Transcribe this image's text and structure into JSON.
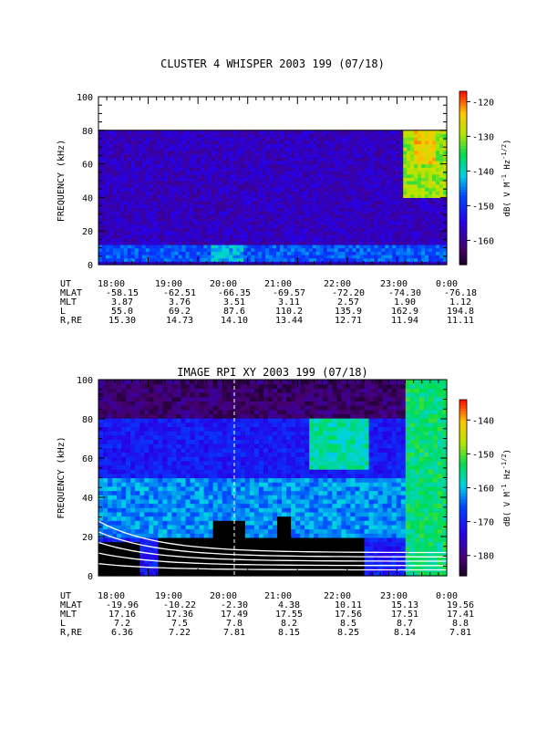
{
  "chart_data": [
    {
      "type": "heatmap",
      "title": "CLUSTER 4 WHISPER 2003 199 (07/18)",
      "ylabel": "FREQUENCY (kHz)",
      "ylim": [
        0,
        100
      ],
      "yticks": [
        "0",
        "20",
        "40",
        "60",
        "80",
        "100"
      ],
      "data_top_khz": 80,
      "colorbar": {
        "label": "dB( V M⁻¹ Hz⁻¹ᐟ²)",
        "label_parts": [
          "dB( V M",
          "-1",
          " Hz",
          "-1/2",
          ")"
        ],
        "ticks": [
          "-120",
          "-130",
          "-140",
          "-150",
          "-160"
        ],
        "range": [
          -167,
          -117
        ]
      },
      "ephemeris": {
        "rows": [
          {
            "label": "UT",
            "values": [
              "18:00",
              "19:00",
              "20:00",
              "21:00",
              "22:00",
              "23:00",
              "0:00"
            ]
          },
          {
            "label": "MLAT",
            "values": [
              "-58.15",
              "-62.51",
              "-66.35",
              "-69.57",
              "-72.20",
              "-74.30",
              "-76.18"
            ]
          },
          {
            "label": "MLT",
            "values": [
              "3.87",
              "3.76",
              "3.51",
              "3.11",
              "2.57",
              "1.90",
              "1.12"
            ]
          },
          {
            "label": "L",
            "values": [
              "55.0",
              "69.2",
              "87.6",
              "110.2",
              "135.9",
              "162.9",
              "194.8"
            ]
          },
          {
            "label": "R,RE",
            "values": [
              "15.30",
              "14.73",
              "14.10",
              "13.44",
              "12.71",
              "11.94",
              "11.11"
            ]
          }
        ]
      },
      "background_db": -157,
      "features": [
        {
          "kind": "band",
          "t0": 0.0,
          "t1": 1.0,
          "f0": 2,
          "f1": 12,
          "db": -147
        },
        {
          "kind": "blob",
          "t0": 0.32,
          "t1": 0.42,
          "f0": 3,
          "f1": 12,
          "db": -142
        },
        {
          "kind": "blob",
          "t0": 0.88,
          "t1": 1.0,
          "f0": 40,
          "f1": 80,
          "db": -130
        },
        {
          "kind": "blob",
          "t0": 0.91,
          "t1": 0.97,
          "f0": 60,
          "f1": 80,
          "db": -124
        }
      ]
    },
    {
      "type": "heatmap",
      "title": "IMAGE RPI XY 2003 199 (07/18)",
      "ylabel": "FREQUENCY (kHz)",
      "ylim": [
        0,
        100
      ],
      "yticks": [
        "0",
        "20",
        "40",
        "60",
        "80",
        "100"
      ],
      "colorbar": {
        "label": "dB( V M⁻¹ Hz⁻¹ᐟ²)",
        "label_parts": [
          "dB( V M",
          "-1",
          " Hz",
          "-1/2",
          ")"
        ],
        "ticks": [
          "-140",
          "-150",
          "-160",
          "-170",
          "-180"
        ],
        "range": [
          -186,
          -134
        ]
      },
      "ephemeris": {
        "rows": [
          {
            "label": "UT",
            "values": [
              "18:00",
              "19:00",
              "20:00",
              "21:00",
              "22:00",
              "23:00",
              "0:00"
            ]
          },
          {
            "label": "MLAT",
            "values": [
              "-19.96",
              "-10.22",
              "-2.30",
              "4.38",
              "10.11",
              "15.13",
              "19.56"
            ]
          },
          {
            "label": "MLT",
            "values": [
              "17.16",
              "17.36",
              "17.49",
              "17.55",
              "17.56",
              "17.51",
              "17.41"
            ]
          },
          {
            "label": "L",
            "values": [
              "7.2",
              "7.5",
              "7.8",
              "8.2",
              "8.5",
              "8.7",
              "8.8"
            ]
          },
          {
            "label": "R,RE",
            "values": [
              "6.36",
              "7.22",
              "7.81",
              "8.15",
              "8.25",
              "8.14",
              "7.81"
            ]
          }
        ]
      },
      "background_db": -170,
      "features": [
        {
          "kind": "band",
          "t0": 0.0,
          "t1": 1.0,
          "f0": 20,
          "f1": 50,
          "db": -162
        },
        {
          "kind": "band",
          "t0": 0.0,
          "t1": 1.0,
          "f0": 80,
          "f1": 100,
          "db": -181
        },
        {
          "kind": "blob",
          "t0": 0.6,
          "t1": 0.78,
          "f0": 55,
          "f1": 80,
          "db": -156
        },
        {
          "kind": "blob",
          "t0": 0.88,
          "t1": 1.0,
          "f0": 0,
          "f1": 100,
          "db": -154
        },
        {
          "kind": "black",
          "t0": 0.17,
          "t1": 0.76,
          "f0": 0,
          "f1": 20
        },
        {
          "kind": "black",
          "t0": 0.33,
          "t1": 0.42,
          "f0": 20,
          "f1": 28
        },
        {
          "kind": "black",
          "t0": 0.51,
          "t1": 0.55,
          "f0": 20,
          "f1": 30
        },
        {
          "kind": "black",
          "t0": 0.0,
          "t1": 0.12,
          "f0": 0,
          "f1": 18
        }
      ],
      "plasmapause_curves": 5
    }
  ]
}
